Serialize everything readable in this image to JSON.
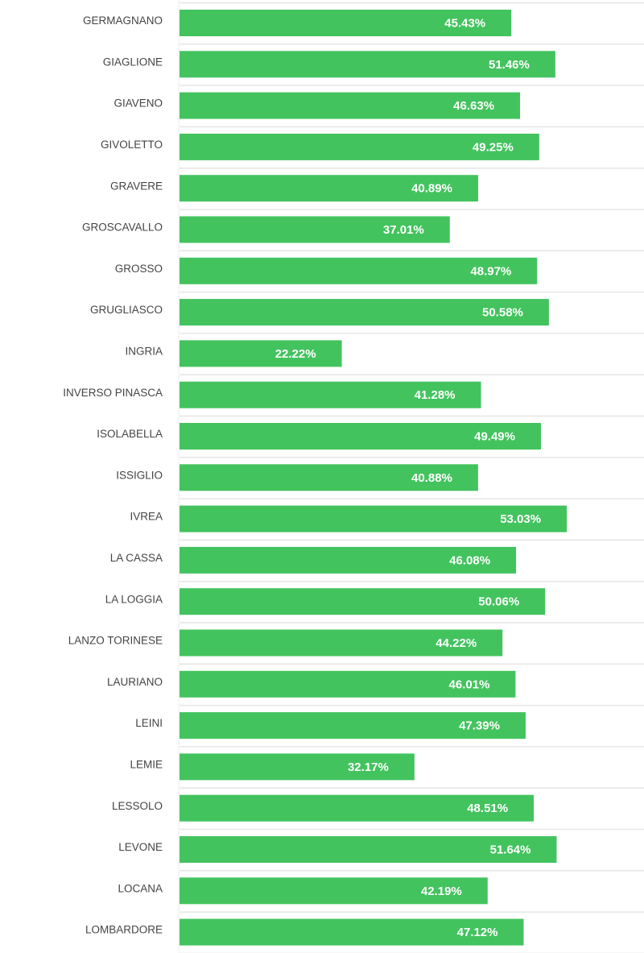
{
  "chart_data": {
    "type": "bar",
    "orientation": "horizontal",
    "title": "",
    "xlabel": "",
    "ylabel": "",
    "xlim": [
      0,
      63.6
    ],
    "grid": false,
    "value_suffix": "%",
    "bar_color": "#43c35e",
    "categories": [
      "GERMAGNANO",
      "GIAGLIONE",
      "GIAVENO",
      "GIVOLETTO",
      "GRAVERE",
      "GROSCAVALLO",
      "GROSSO",
      "GRUGLIASCO",
      "INGRIA",
      "INVERSO PINASCA",
      "ISOLABELLA",
      "ISSIGLIO",
      "IVREA",
      "LA CASSA",
      "LA LOGGIA",
      "LANZO TORINESE",
      "LAURIANO",
      "LEINI",
      "LEMIE",
      "LESSOLO",
      "LEVONE",
      "LOCANA",
      "LOMBARDORE"
    ],
    "values": [
      45.43,
      51.46,
      46.63,
      49.25,
      40.89,
      37.01,
      48.97,
      50.58,
      22.22,
      41.28,
      49.49,
      40.88,
      53.03,
      46.08,
      50.06,
      44.22,
      46.01,
      47.39,
      32.17,
      48.51,
      51.64,
      42.19,
      47.12
    ],
    "labels": [
      "45.43%",
      "51.46%",
      "46.63%",
      "49.25%",
      "40.89%",
      "37.01%",
      "48.97%",
      "50.58%",
      "22.22%",
      "41.28%",
      "49.49%",
      "40.88%",
      "53.03%",
      "46.08%",
      "50.06%",
      "44.22%",
      "46.01%",
      "47.39%",
      "32.17%",
      "48.51%",
      "51.64%",
      "42.19%",
      "47.12%"
    ]
  }
}
